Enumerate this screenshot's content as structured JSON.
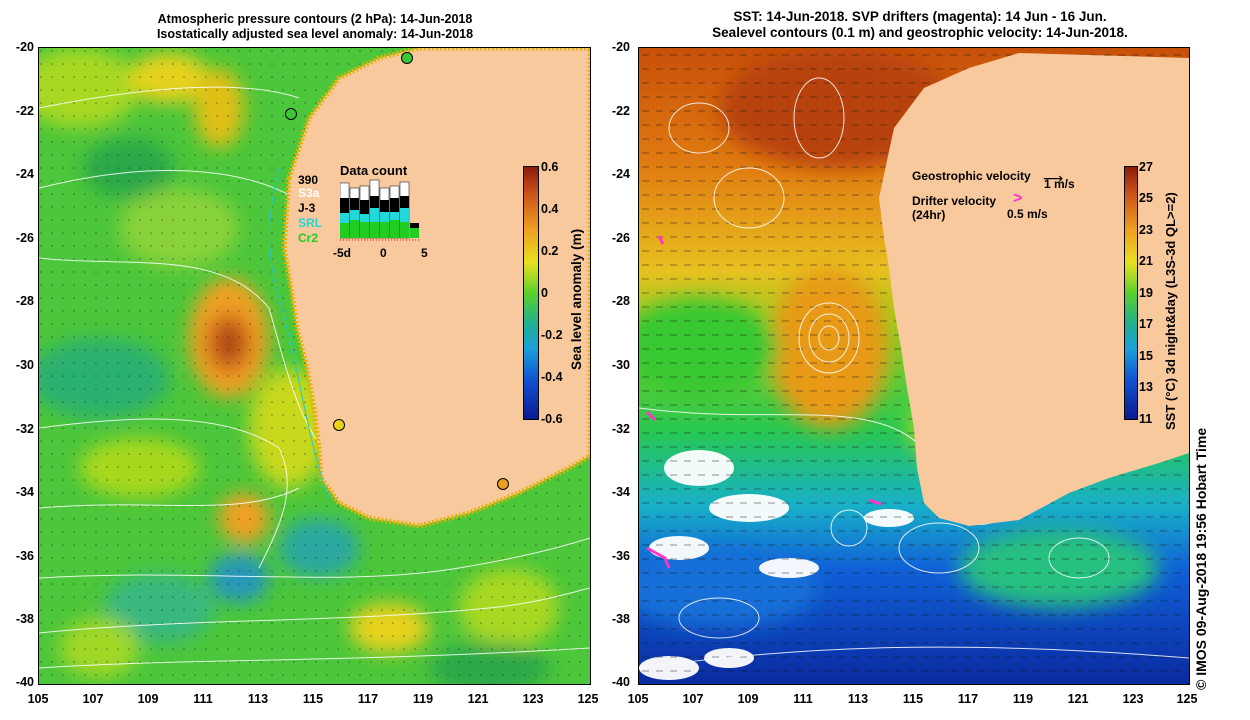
{
  "left_panel": {
    "title_line1": "Atmospheric pressure contours (2 hPa): 14-Jun-2018",
    "title_line2": "Isostatically adjusted sea level anomaly: 14-Jun-2018",
    "y_ticks": [
      "-20",
      "-22",
      "-24",
      "-26",
      "-28",
      "-30",
      "-32",
      "-34",
      "-36",
      "-38",
      "-40"
    ],
    "x_ticks": [
      "105",
      "107",
      "109",
      "111",
      "113",
      "115",
      "117",
      "119",
      "121",
      "123",
      "125"
    ],
    "data_count": {
      "title": "Data count",
      "number": "390",
      "sats": [
        {
          "name": "S3a",
          "color": "#ffffff"
        },
        {
          "name": "J-3",
          "color": "#000000"
        },
        {
          "name": "SRL",
          "color": "#22d8d8"
        },
        {
          "name": "Cr2",
          "color": "#22cc22"
        }
      ],
      "axis": [
        "-5d",
        "0",
        "5"
      ]
    },
    "colorbar": {
      "label": "Sea level anomaly (m)",
      "ticks": [
        "0.6",
        "0.4",
        "0.2",
        "0",
        "-0.2",
        "-0.4",
        "-0.6"
      ]
    }
  },
  "right_panel": {
    "title_line1": "SST: 14-Jun-2018. SVP drifters (magenta): 14 Jun - 16 Jun.",
    "title_line2": "Sealevel contours (0.1 m) and geostrophic velocity: 14-Jun-2018.",
    "y_ticks": [
      "-20",
      "-22",
      "-24",
      "-26",
      "-28",
      "-30",
      "-32",
      "-34",
      "-36",
      "-38",
      "-40"
    ],
    "x_ticks": [
      "105",
      "107",
      "109",
      "111",
      "113",
      "115",
      "117",
      "119",
      "121",
      "123",
      "125"
    ],
    "geo_label": "Geostrophic velocity",
    "geo_scale": "1 m/s",
    "drifter_label": "Drifter velocity",
    "drifter_sub": "(24hr)",
    "drifter_scale": "0.5 m/s",
    "colorbar": {
      "label": "SST (°C) 3d night&day (L3S-3d QL>=2)",
      "ticks": [
        "27",
        "25",
        "23",
        "21",
        "19",
        "17",
        "15",
        "13",
        "11"
      ]
    }
  },
  "credit": "© IMOS 09-Aug-2018 19:56 Hobart Time"
}
